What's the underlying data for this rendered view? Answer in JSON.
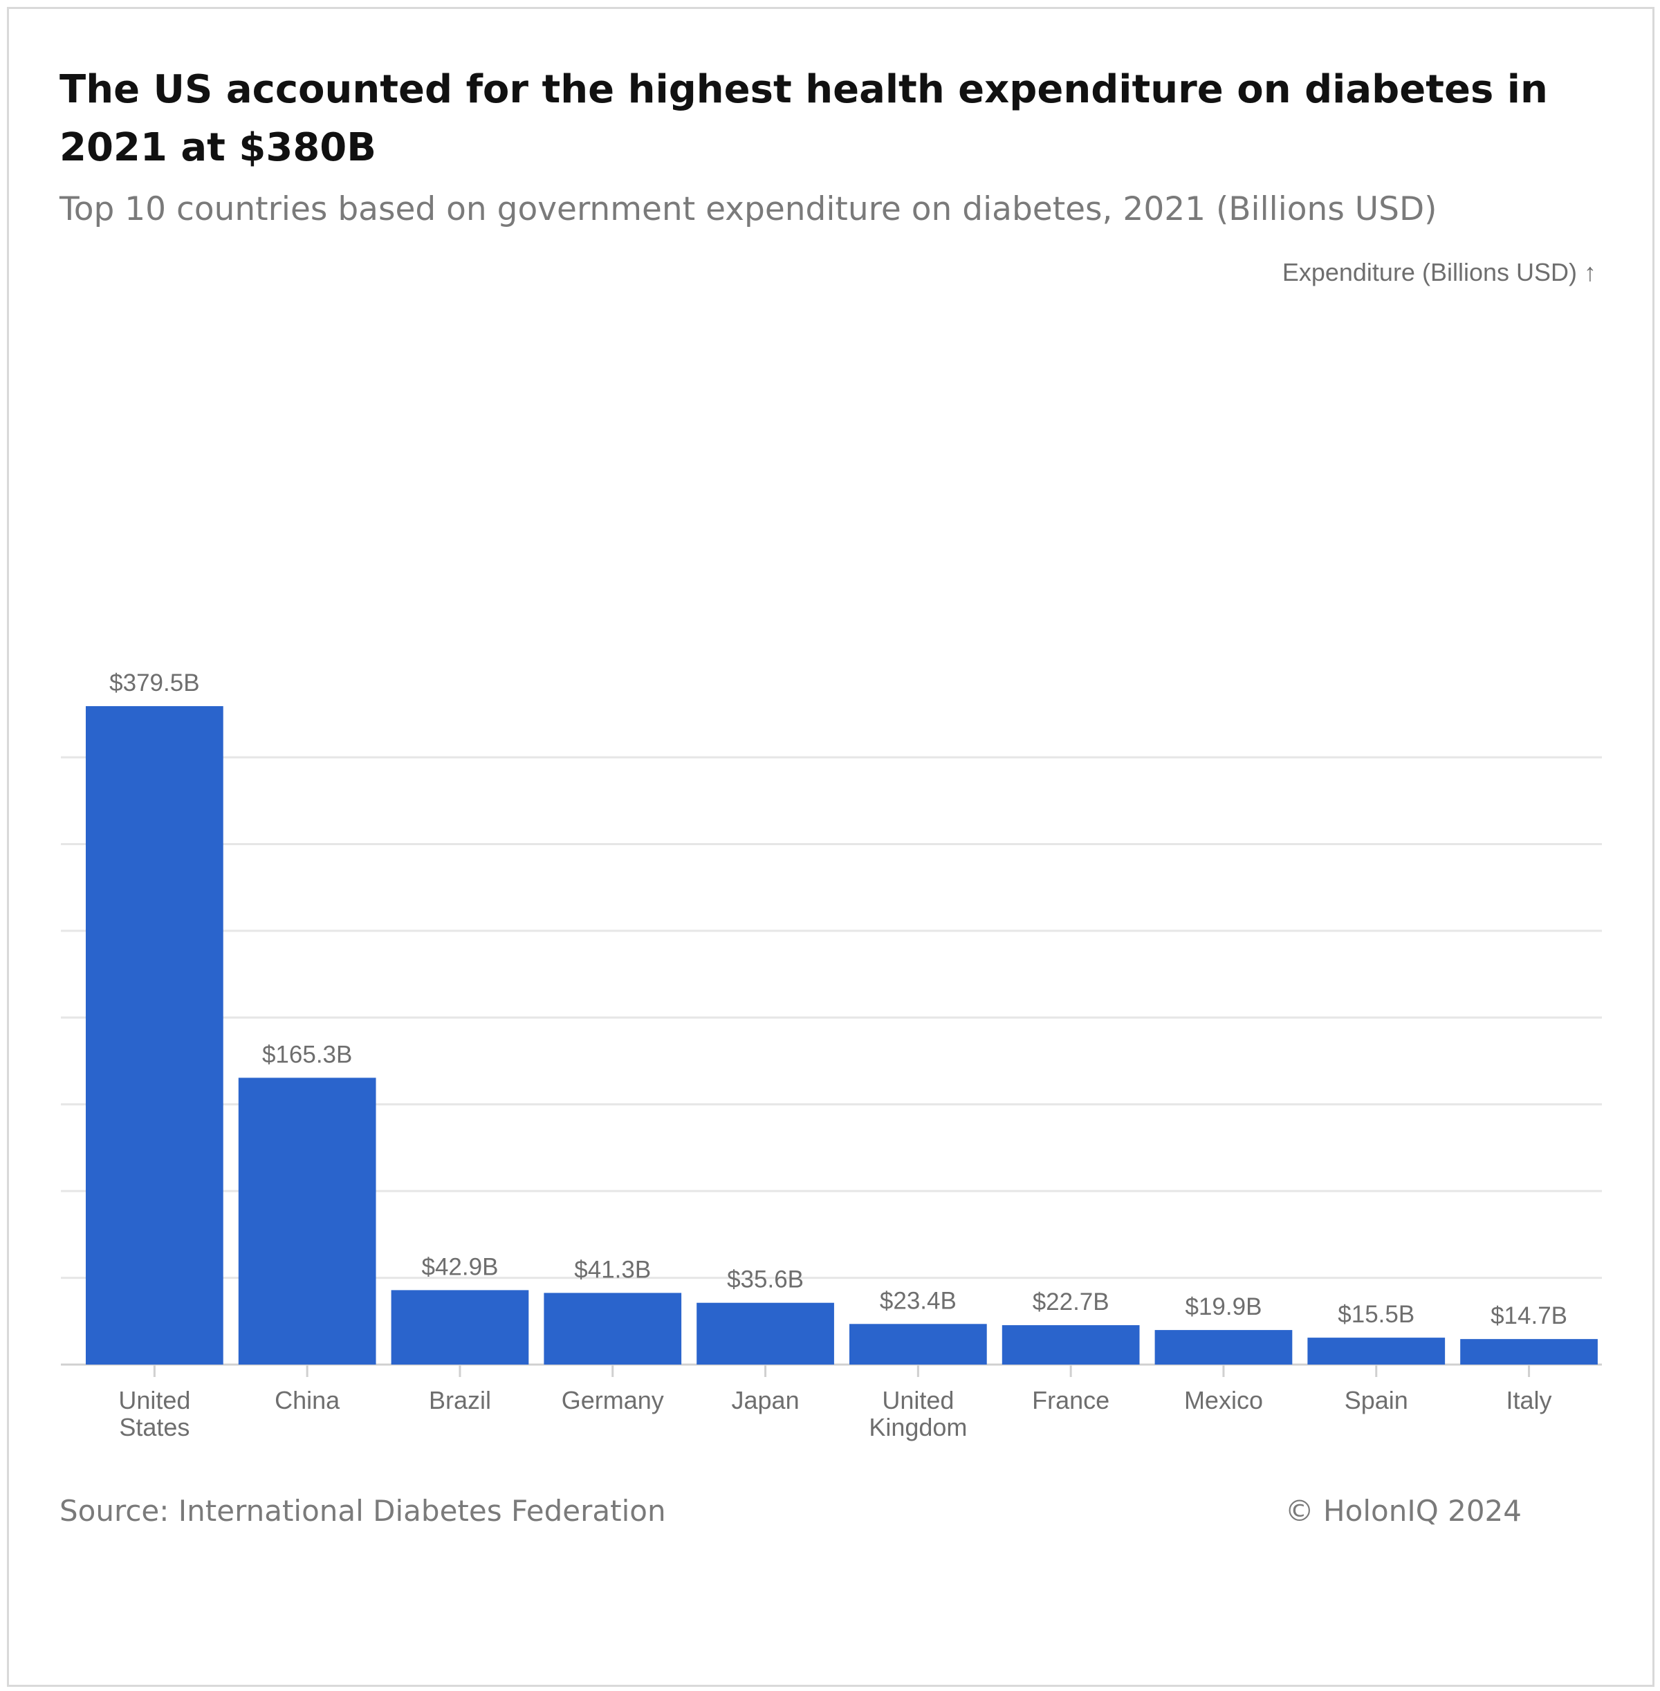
{
  "header": {
    "title": "The US accounted for the highest health expenditure on diabetes in 2021 at $380B",
    "subtitle": "Top 10 countries based on government expenditure on diabetes, 2021 (Billions USD)"
  },
  "footer": {
    "source": "Source: International Diabetes Federation",
    "copyright": "© HolonIQ 2024"
  },
  "colors": {
    "bar": "#2a64cc",
    "grid": "#e6e6e6",
    "axis": "#d0d0d0",
    "label": "#6e6e6e"
  },
  "chart_data": {
    "type": "bar",
    "title": "The US accounted for the highest health expenditure on diabetes in 2021 at $380B",
    "ylabel": "Expenditure (Billions USD) ↑",
    "xlabel": "",
    "ylim": [
      0,
      350
    ],
    "grid": true,
    "categories": [
      [
        "United",
        "States"
      ],
      [
        "China"
      ],
      [
        "Brazil"
      ],
      [
        "Germany"
      ],
      [
        "Japan"
      ],
      [
        "United",
        "Kingdom"
      ],
      [
        "France"
      ],
      [
        "Mexico"
      ],
      [
        "Spain"
      ],
      [
        "Italy"
      ]
    ],
    "values": [
      379.5,
      165.3,
      42.9,
      41.3,
      35.6,
      23.4,
      22.7,
      19.9,
      15.5,
      14.7
    ],
    "value_labels": [
      "$379.5B",
      "$165.3B",
      "$42.9B",
      "$41.3B",
      "$35.6B",
      "$23.4B",
      "$22.7B",
      "$19.9B",
      "$15.5B",
      "$14.7B"
    ]
  }
}
